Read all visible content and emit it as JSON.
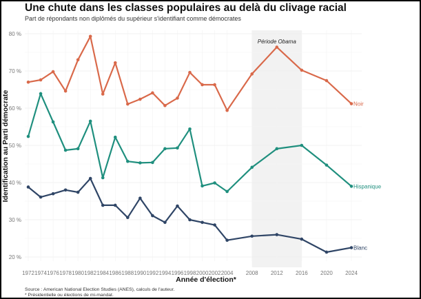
{
  "chart_data": {
    "type": "line",
    "title": "Une chute dans les classes populaires au delà du clivage racial",
    "subtitle": "Part de répondants non diplômés du supérieur s'identifiant comme démocrates",
    "xlabel": "Année d'élection*",
    "ylabel": "Identification au Parti démocrate",
    "ylim": [
      18,
      82
    ],
    "grid": true,
    "y_ticks": [
      {
        "value": 20,
        "label": "20 %"
      },
      {
        "value": 30,
        "label": "30 %"
      },
      {
        "value": 40,
        "label": "40 %"
      },
      {
        "value": 50,
        "label": "50 %"
      },
      {
        "value": 60,
        "label": "60 %"
      },
      {
        "value": 70,
        "label": "70 %"
      },
      {
        "value": 80,
        "label": "80 %"
      }
    ],
    "x_ticks": [
      1972,
      1974,
      1976,
      1978,
      1980,
      1982,
      1984,
      1986,
      1988,
      1990,
      1992,
      1994,
      1996,
      1998,
      2000,
      2002,
      2004,
      2008,
      2012,
      2016,
      2020,
      2024
    ],
    "xlim": [
      1970.5,
      2027
    ],
    "x": [
      1972,
      1974,
      1976,
      1978,
      1980,
      1982,
      1984,
      1986,
      1988,
      1990,
      1992,
      1994,
      1996,
      1998,
      2000,
      2002,
      2004,
      2008,
      2012,
      2016,
      2020,
      2024
    ],
    "series": [
      {
        "name": "Noir",
        "color": "#d9694a",
        "values": [
          67.0,
          67.6,
          69.8,
          64.6,
          73.0,
          79.3,
          63.8,
          72.2,
          61.1,
          62.4,
          64.1,
          60.7,
          62.7,
          69.6,
          66.3,
          66.3,
          59.4,
          69.2,
          76.4,
          70.2,
          67.4,
          61.2
        ]
      },
      {
        "name": "Hispanique",
        "color": "#1f8f7e",
        "values": [
          52.4,
          63.9,
          56.3,
          48.7,
          49.1,
          56.5,
          41.3,
          52.2,
          45.7,
          45.3,
          45.4,
          49.1,
          49.3,
          54.4,
          39.1,
          39.9,
          37.6,
          44.1,
          49.1,
          50.0,
          44.7,
          39.0
        ]
      },
      {
        "name": "Blanc",
        "color": "#2f4566",
        "values": [
          38.8,
          36.1,
          37.0,
          38.0,
          37.4,
          41.1,
          33.9,
          33.9,
          30.6,
          35.8,
          31.1,
          29.3,
          33.7,
          30.0,
          29.3,
          28.6,
          24.5,
          25.6,
          26.0,
          24.8,
          21.3,
          22.5
        ]
      }
    ],
    "annotations": [
      {
        "label": "Période Obama",
        "x_range": [
          2008,
          2016
        ],
        "shaded": true,
        "shade_color": "#f2f2f2"
      }
    ],
    "legend": "direct-labels-at-line-ends",
    "source": "Source : American National Election Studies (ANES), calculs de l'auteur.",
    "footnote": "* Présidentielle ou élections de mi-mandat."
  }
}
